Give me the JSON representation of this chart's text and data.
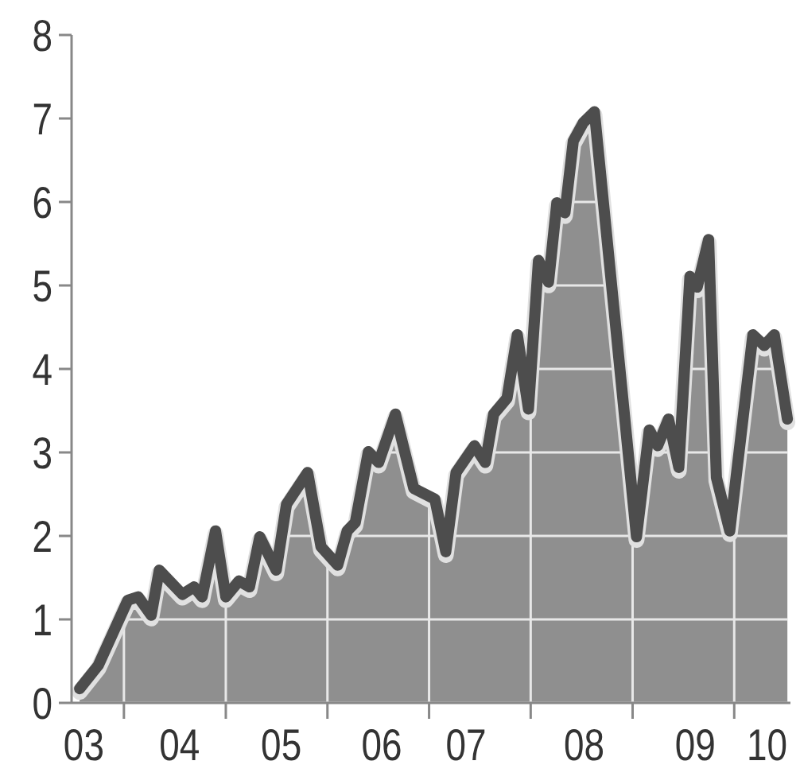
{
  "chart_data": {
    "type": "area",
    "x": [
      "2003-07-26",
      "2003-10-01",
      "2004-01-15",
      "2004-02-21",
      "2004-04-08",
      "2004-05-07",
      "2004-07-29",
      "2004-09-09",
      "2004-10-08",
      "2004-11-25",
      "2005-01-01",
      "2005-02-17",
      "2005-03-27",
      "2005-05-03",
      "2005-07-01",
      "2005-08-07",
      "2005-10-22",
      "2005-12-09",
      "2006-02-07",
      "2006-03-13",
      "2006-04-11",
      "2006-05-28",
      "2006-07-04",
      "2006-09-02",
      "2006-11-07",
      "2007-01-22",
      "2007-03-02",
      "2007-04-08",
      "2007-06-13",
      "2007-07-22",
      "2007-08-21",
      "2007-10-08",
      "2007-11-14",
      "2007-12-24",
      "2008-01-29",
      "2008-03-05",
      "2008-04-04",
      "2008-05-03",
      "2008-06-02",
      "2008-07-08",
      "2008-08-17",
      "2009-01-15",
      "2009-03-02",
      "2009-04-01",
      "2009-05-10",
      "2009-06-16",
      "2009-07-26",
      "2009-08-21",
      "2009-10-01",
      "2009-10-29",
      "2009-12-16",
      "2010-03-09",
      "2010-04-19",
      "2010-05-25",
      "2010-07-11"
    ],
    "series": [
      {
        "color": "#4d4d4d",
        "values": [
          0.17,
          0.45,
          1.23,
          1.27,
          1.05,
          1.59,
          1.3,
          1.39,
          1.27,
          2.06,
          1.27,
          1.46,
          1.39,
          1.99,
          1.59,
          2.38,
          2.76,
          1.87,
          1.65,
          2.06,
          2.16,
          3.01,
          2.88,
          3.46,
          2.57,
          2.44,
          1.81,
          2.76,
          3.08,
          2.88,
          3.46,
          3.65,
          4.41,
          3.52,
          5.3,
          5.04,
          5.99,
          5.87,
          6.73,
          6.95,
          7.08,
          1.99,
          3.27,
          3.08,
          3.4,
          2.82,
          5.11,
          4.98,
          5.55,
          2.7,
          2.06,
          4.41,
          4.28,
          4.41,
          3.4
        ]
      }
    ],
    "xlim": [
      "2003-06-27",
      "2010-07-22"
    ],
    "xticks": [
      {
        "value": "2003-08-10",
        "label": "03"
      },
      {
        "value": "2004-01-01",
        "label": null
      },
      {
        "value": "2004-07-19",
        "label": "04"
      },
      {
        "value": "2005-01-01",
        "label": null
      },
      {
        "value": "2005-07-19",
        "label": "05"
      },
      {
        "value": "2006-01-01",
        "label": null
      },
      {
        "value": "2006-07-15",
        "label": "06"
      },
      {
        "value": "2007-01-01",
        "label": null
      },
      {
        "value": "2007-05-14",
        "label": "07"
      },
      {
        "value": "2008-01-01",
        "label": null
      },
      {
        "value": "2008-07-11",
        "label": "08"
      },
      {
        "value": "2009-01-01",
        "label": null
      },
      {
        "value": "2009-08-14",
        "label": "09"
      },
      {
        "value": "2010-01-01",
        "label": null
      },
      {
        "value": "2010-04-29",
        "label": "10"
      }
    ],
    "ylim": [
      0,
      8
    ],
    "yticks": [
      0,
      1,
      2,
      3,
      4,
      5,
      6,
      7,
      8
    ],
    "grid": true
  }
}
